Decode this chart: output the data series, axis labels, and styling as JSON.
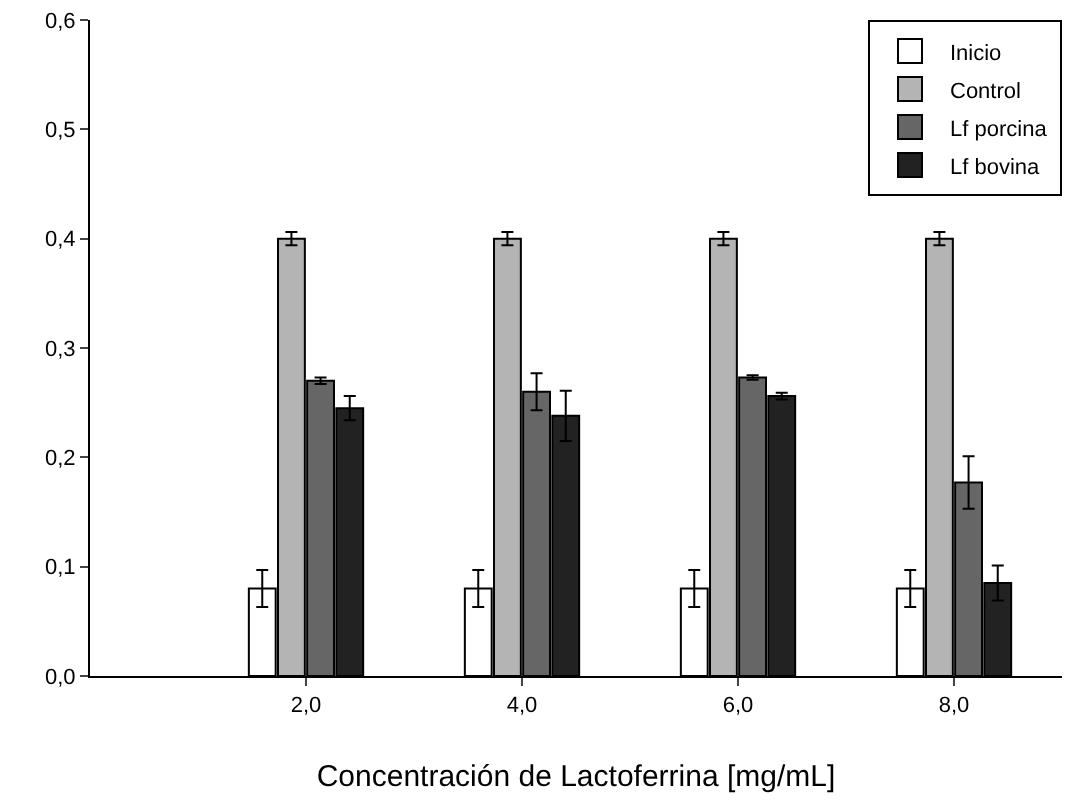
{
  "chart_data": {
    "type": "bar",
    "xlabel": "Concentración de Lactoferrina [mg/mL]",
    "x": [
      2,
      4,
      6,
      8
    ],
    "xlim": [
      0,
      9
    ],
    "xticks": [
      {
        "value": 2,
        "label": "2,0"
      },
      {
        "value": 4,
        "label": "4,0"
      },
      {
        "value": 6,
        "label": "6,0"
      },
      {
        "value": 8,
        "label": "8,0"
      }
    ],
    "ylim": [
      0,
      0.6
    ],
    "yticks": [
      {
        "value": 0,
        "label": "0,0"
      },
      {
        "value": 0.1,
        "label": "0,1"
      },
      {
        "value": 0.2,
        "label": "0,2"
      },
      {
        "value": 0.3,
        "label": "0,3"
      },
      {
        "value": 0.4,
        "label": "0,4"
      },
      {
        "value": 0.5,
        "label": "0,5"
      },
      {
        "value": 0.6,
        "label": "0,6"
      }
    ],
    "series": [
      {
        "name": "Inicio",
        "color": "#ffffff",
        "values": [
          0.08,
          0.08,
          0.08,
          0.08
        ],
        "errors": [
          0.017,
          0.017,
          0.017,
          0.017
        ]
      },
      {
        "name": "Control",
        "color": "#b4b4b4",
        "values": [
          0.4,
          0.4,
          0.4,
          0.4
        ],
        "errors": [
          0.006,
          0.006,
          0.006,
          0.006
        ]
      },
      {
        "name": "Lf porcina",
        "color": "#666666",
        "values": [
          0.27,
          0.26,
          0.273,
          0.177
        ],
        "errors": [
          0.003,
          0.017,
          0.002,
          0.024
        ]
      },
      {
        "name": "Lf bovina",
        "color": "#222222",
        "values": [
          0.245,
          0.238,
          0.256,
          0.085
        ],
        "errors": [
          0.011,
          0.023,
          0.003,
          0.016
        ]
      }
    ],
    "grid": false,
    "legend": "top right"
  }
}
